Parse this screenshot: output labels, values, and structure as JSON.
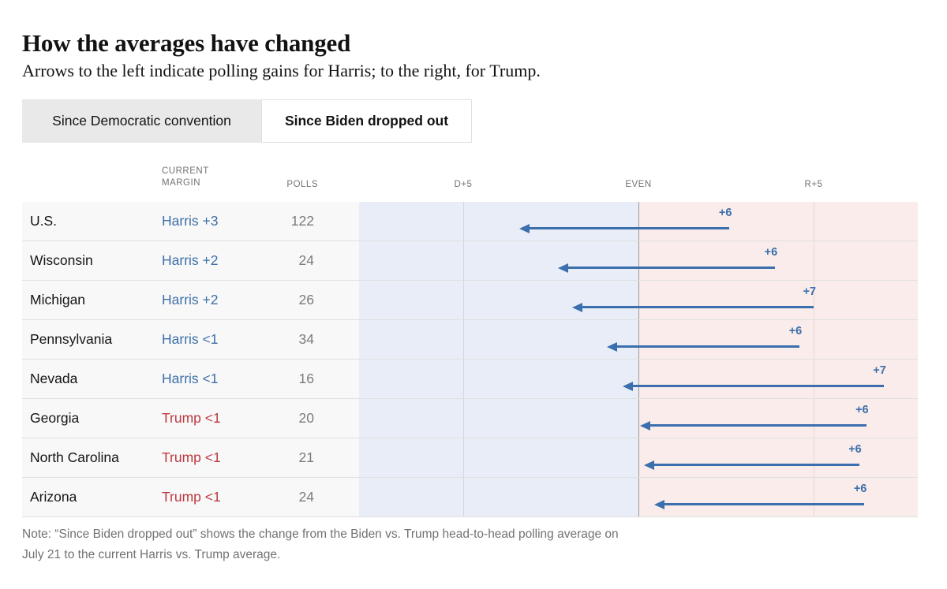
{
  "title": "How the averages have changed",
  "subtitle": "Arrows to the left indicate polling gains for Harris; to the right, for Trump.",
  "tabs": [
    {
      "label": "Since Democratic convention",
      "active": false
    },
    {
      "label": "Since Biden dropped out",
      "active": true
    }
  ],
  "table": {
    "headers": {
      "margin": "CURRENT MARGIN",
      "polls": "POLLS"
    },
    "axis": {
      "d": "D+5",
      "even": "EVEN",
      "r": "R+5"
    }
  },
  "chart_data": {
    "type": "diverging-arrow",
    "title": "How the averages have changed",
    "x_axis": {
      "tick_labels": [
        "D+5",
        "EVEN",
        "R+5"
      ],
      "tick_values": [
        -5,
        0,
        5
      ],
      "domain": [
        -8,
        8
      ],
      "units": "polling margin in percentage points (negative = Harris/D lead, positive = Trump/R lead)"
    },
    "rows": [
      {
        "state": "U.S.",
        "margin": "Harris +3",
        "party": "harris",
        "polls": "122",
        "change": "+6",
        "from_r_margin": 2.6,
        "to_r_margin": -3.4
      },
      {
        "state": "Wisconsin",
        "margin": "Harris +2",
        "party": "harris",
        "polls": "24",
        "change": "+6",
        "from_r_margin": 3.9,
        "to_r_margin": -2.3
      },
      {
        "state": "Michigan",
        "margin": "Harris +2",
        "party": "harris",
        "polls": "26",
        "change": "+7",
        "from_r_margin": 5.0,
        "to_r_margin": -1.9
      },
      {
        "state": "Pennsylvania",
        "margin": "Harris <1",
        "party": "harris",
        "polls": "34",
        "change": "+6",
        "from_r_margin": 4.6,
        "to_r_margin": -0.9
      },
      {
        "state": "Nevada",
        "margin": "Harris <1",
        "party": "harris",
        "polls": "16",
        "change": "+7",
        "from_r_margin": 7.0,
        "to_r_margin": -0.45
      },
      {
        "state": "Georgia",
        "margin": "Trump <1",
        "party": "trump",
        "polls": "20",
        "change": "+6",
        "from_r_margin": 6.5,
        "to_r_margin": 0.05
      },
      {
        "state": "North Carolina",
        "margin": "Trump <1",
        "party": "trump",
        "polls": "21",
        "change": "+6",
        "from_r_margin": 6.3,
        "to_r_margin": 0.15
      },
      {
        "state": "Arizona",
        "margin": "Trump <1",
        "party": "trump",
        "polls": "24",
        "change": "+6",
        "from_r_margin": 6.45,
        "to_r_margin": 0.45
      }
    ],
    "colors": {
      "arrow_blue": "#3b6fad",
      "harris_text": "#3d6fa8",
      "trump_text": "#bc3a41",
      "dem_zone": "#e9edf7",
      "rep_zone": "#f9ecea"
    }
  },
  "note": "Note: “Since Biden dropped out” shows the change from the Biden vs. Trump head-to-head polling average on July 21 to the current Harris vs. Trump average."
}
